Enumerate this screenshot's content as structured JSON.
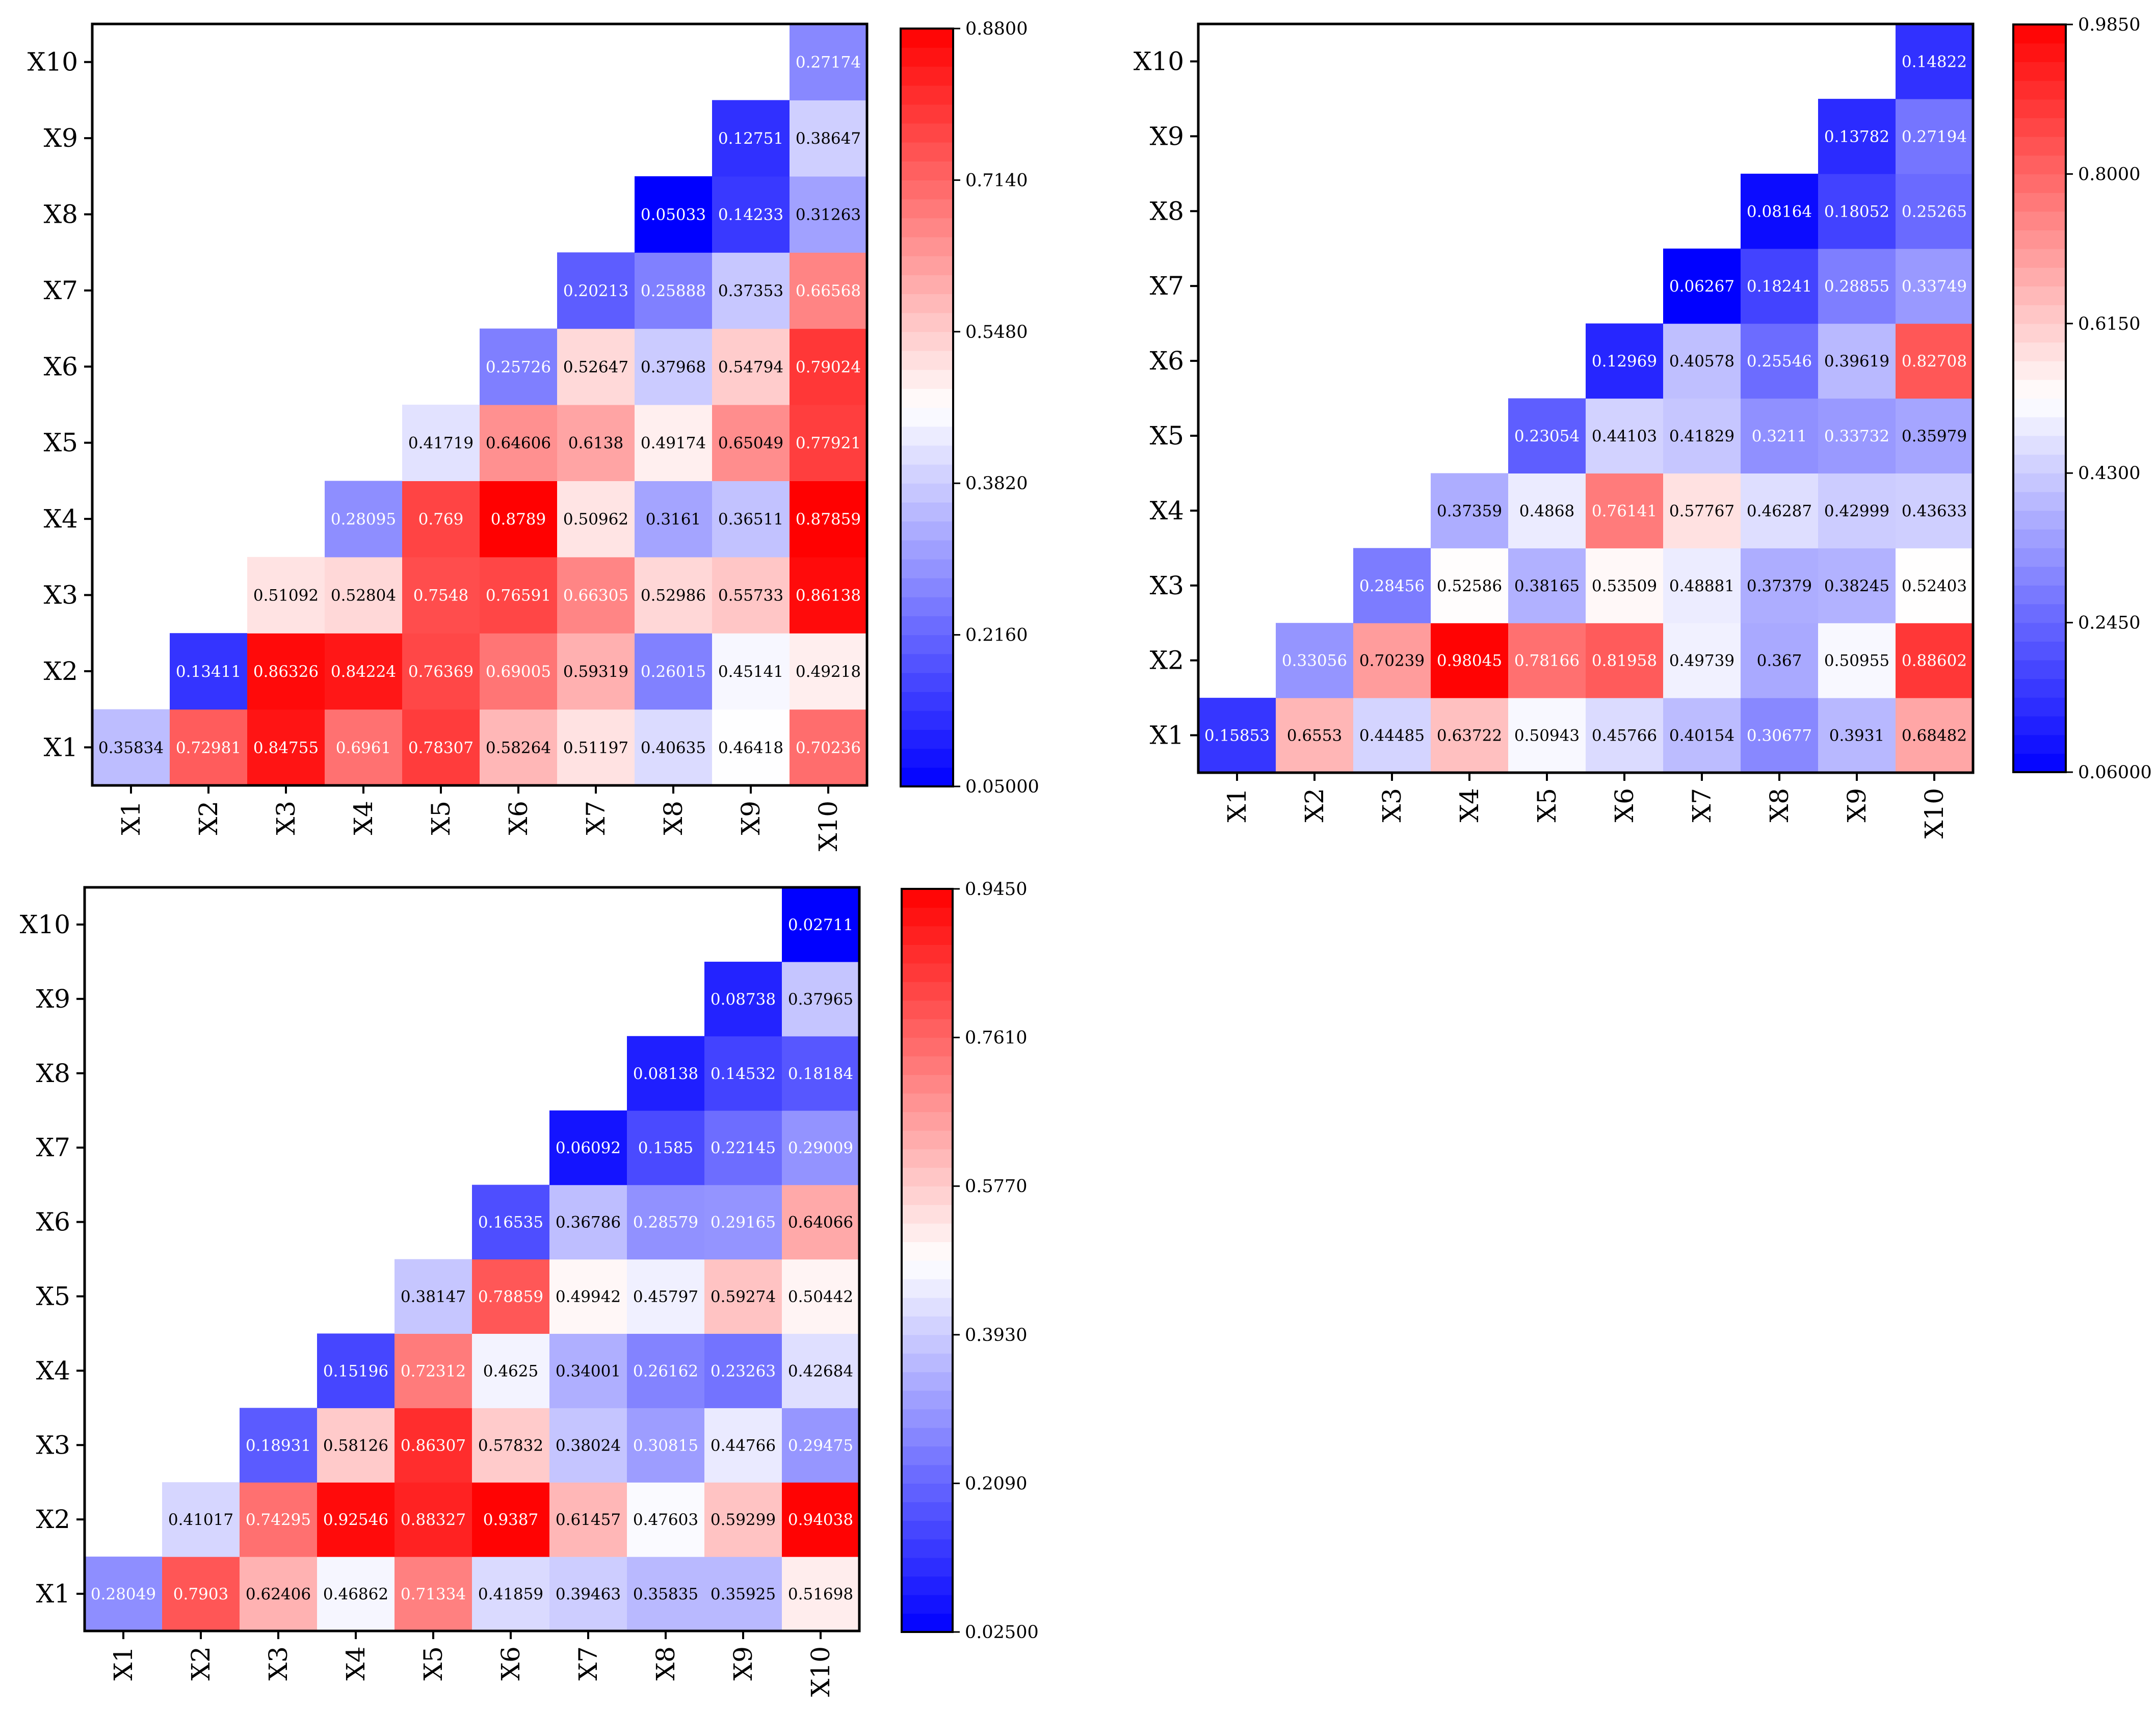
{
  "chart_data": [
    {
      "type": "heatmap",
      "title": "",
      "xlabel": "",
      "ylabel": "",
      "x_categories": [
        "X1",
        "X2",
        "X3",
        "X4",
        "X5",
        "X6",
        "X7",
        "X8",
        "X9",
        "X10"
      ],
      "y_categories": [
        "X1",
        "X2",
        "X3",
        "X4",
        "X5",
        "X6",
        "X7",
        "X8",
        "X9",
        "X10"
      ],
      "triangle": "upper",
      "colormap": "bwr",
      "colorbar_range": [
        0.05,
        0.88
      ],
      "colorbar_ticks": [
        "0.8800",
        "0.7140",
        "0.5480",
        "0.3820",
        "0.2160",
        "0.05000"
      ],
      "rows": [
        {
          "y": "X1",
          "values": [
            "0.35834",
            "0.72981",
            "0.84755",
            "0.6961",
            "0.78307",
            "0.58264",
            "0.51197",
            "0.40635",
            "0.46418",
            "0.70236"
          ]
        },
        {
          "y": "X2",
          "values": [
            "0.13411",
            "0.86326",
            "0.84224",
            "0.76369",
            "0.69005",
            "0.59319",
            "0.26015",
            "0.45141",
            "0.49218"
          ]
        },
        {
          "y": "X3",
          "values": [
            "0.51092",
            "0.52804",
            "0.7548",
            "0.76591",
            "0.66305",
            "0.52986",
            "0.55733",
            "0.86138"
          ]
        },
        {
          "y": "X4",
          "values": [
            "0.28095",
            "0.769",
            "0.8789",
            "0.50962",
            "0.3161",
            "0.36511",
            "0.87859"
          ]
        },
        {
          "y": "X5",
          "values": [
            "0.41719",
            "0.64606",
            "0.6138",
            "0.49174",
            "0.65049",
            "0.77921"
          ]
        },
        {
          "y": "X6",
          "values": [
            "0.25726",
            "0.52647",
            "0.37968",
            "0.54794",
            "0.79024"
          ]
        },
        {
          "y": "X7",
          "values": [
            "0.20213",
            "0.25888",
            "0.37353",
            "0.66568"
          ]
        },
        {
          "y": "X8",
          "values": [
            "0.05033",
            "0.14233",
            "0.31263"
          ]
        },
        {
          "y": "X9",
          "values": [
            "0.12751",
            "0.38647"
          ]
        },
        {
          "y": "X10",
          "values": [
            "0.27174"
          ]
        }
      ]
    },
    {
      "type": "heatmap",
      "title": "",
      "xlabel": "",
      "ylabel": "",
      "x_categories": [
        "X1",
        "X2",
        "X3",
        "X4",
        "X5",
        "X6",
        "X7",
        "X8",
        "X9",
        "X10"
      ],
      "y_categories": [
        "X1",
        "X2",
        "X3",
        "X4",
        "X5",
        "X6",
        "X7",
        "X8",
        "X9",
        "X10"
      ],
      "triangle": "upper",
      "colormap": "bwr",
      "colorbar_range": [
        0.06,
        0.985
      ],
      "colorbar_ticks": [
        "0.9850",
        "0.8000",
        "0.6150",
        "0.4300",
        "0.2450",
        "0.06000"
      ],
      "rows": [
        {
          "y": "X1",
          "values": [
            "0.15853",
            "0.6553",
            "0.44485",
            "0.63722",
            "0.50943",
            "0.45766",
            "0.40154",
            "0.30677",
            "0.3931",
            "0.68482"
          ]
        },
        {
          "y": "X2",
          "values": [
            "0.33056",
            "0.70239",
            "0.98045",
            "0.78166",
            "0.81958",
            "0.49739",
            "0.367",
            "0.50955",
            "0.88602"
          ]
        },
        {
          "y": "X3",
          "values": [
            "0.28456",
            "0.52586",
            "0.38165",
            "0.53509",
            "0.48881",
            "0.37379",
            "0.38245",
            "0.52403"
          ]
        },
        {
          "y": "X4",
          "values": [
            "0.37359",
            "0.4868",
            "0.76141",
            "0.57767",
            "0.46287",
            "0.42999",
            "0.43633"
          ]
        },
        {
          "y": "X5",
          "values": [
            "0.23054",
            "0.44103",
            "0.41829",
            "0.3211",
            "0.33732",
            "0.35979"
          ]
        },
        {
          "y": "X6",
          "values": [
            "0.12969",
            "0.40578",
            "0.25546",
            "0.39619",
            "0.82708"
          ]
        },
        {
          "y": "X7",
          "values": [
            "0.06267",
            "0.18241",
            "0.28855",
            "0.33749"
          ]
        },
        {
          "y": "X8",
          "values": [
            "0.08164",
            "0.18052",
            "0.25265"
          ]
        },
        {
          "y": "X9",
          "values": [
            "0.13782",
            "0.27194"
          ]
        },
        {
          "y": "X10",
          "values": [
            "0.14822"
          ]
        }
      ]
    },
    {
      "type": "heatmap",
      "title": "",
      "xlabel": "",
      "ylabel": "",
      "x_categories": [
        "X1",
        "X2",
        "X3",
        "X4",
        "X5",
        "X6",
        "X7",
        "X8",
        "X9",
        "X10"
      ],
      "y_categories": [
        "X1",
        "X2",
        "X3",
        "X4",
        "X5",
        "X6",
        "X7",
        "X8",
        "X9",
        "X10"
      ],
      "triangle": "upper",
      "colormap": "bwr",
      "colorbar_range": [
        0.025,
        0.945
      ],
      "colorbar_ticks": [
        "0.9450",
        "0.7610",
        "0.5770",
        "0.3930",
        "0.2090",
        "0.02500"
      ],
      "rows": [
        {
          "y": "X1",
          "values": [
            "0.28049",
            "0.7903",
            "0.62406",
            "0.46862",
            "0.71334",
            "0.41859",
            "0.39463",
            "0.35835",
            "0.35925",
            "0.51698"
          ]
        },
        {
          "y": "X2",
          "values": [
            "0.41017",
            "0.74295",
            "0.92546",
            "0.88327",
            "0.9387",
            "0.61457",
            "0.47603",
            "0.59299",
            "0.94038"
          ]
        },
        {
          "y": "X3",
          "values": [
            "0.18931",
            "0.58126",
            "0.86307",
            "0.57832",
            "0.38024",
            "0.30815",
            "0.44766",
            "0.29475"
          ]
        },
        {
          "y": "X4",
          "values": [
            "0.15196",
            "0.72312",
            "0.4625",
            "0.34001",
            "0.26162",
            "0.23263",
            "0.42684"
          ]
        },
        {
          "y": "X5",
          "values": [
            "0.38147",
            "0.78859",
            "0.49942",
            "0.45797",
            "0.59274",
            "0.50442"
          ]
        },
        {
          "y": "X6",
          "values": [
            "0.16535",
            "0.36786",
            "0.28579",
            "0.29165",
            "0.64066"
          ]
        },
        {
          "y": "X7",
          "values": [
            "0.06092",
            "0.1585",
            "0.22145",
            "0.29009"
          ]
        },
        {
          "y": "X8",
          "values": [
            "0.08138",
            "0.14532",
            "0.18184"
          ]
        },
        {
          "y": "X9",
          "values": [
            "0.08738",
            "0.37965"
          ]
        },
        {
          "y": "X10",
          "values": [
            "0.02711"
          ]
        }
      ]
    }
  ]
}
